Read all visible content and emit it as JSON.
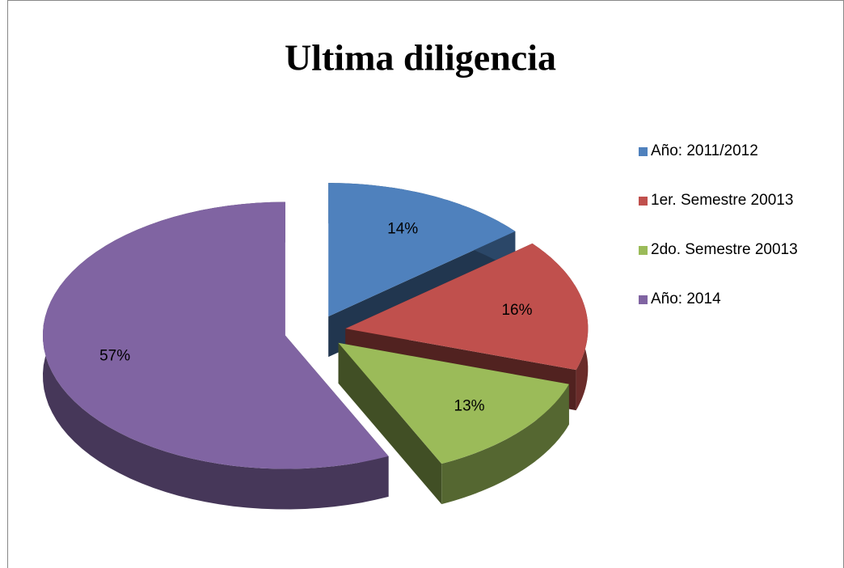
{
  "chart_data": {
    "type": "pie",
    "title": "Ultima diligencia",
    "categories": [
      "Año: 2011/2012",
      "1er. Semestre 20013",
      "2do. Semestre 20013",
      "Año: 2014"
    ],
    "values": [
      14,
      16,
      13,
      57
    ],
    "value_labels": [
      "14%",
      "16%",
      "13%",
      "57%"
    ],
    "colors": [
      "#4f81bd",
      "#c0504d",
      "#9bbb59",
      "#8064a2"
    ],
    "legend": "right"
  }
}
